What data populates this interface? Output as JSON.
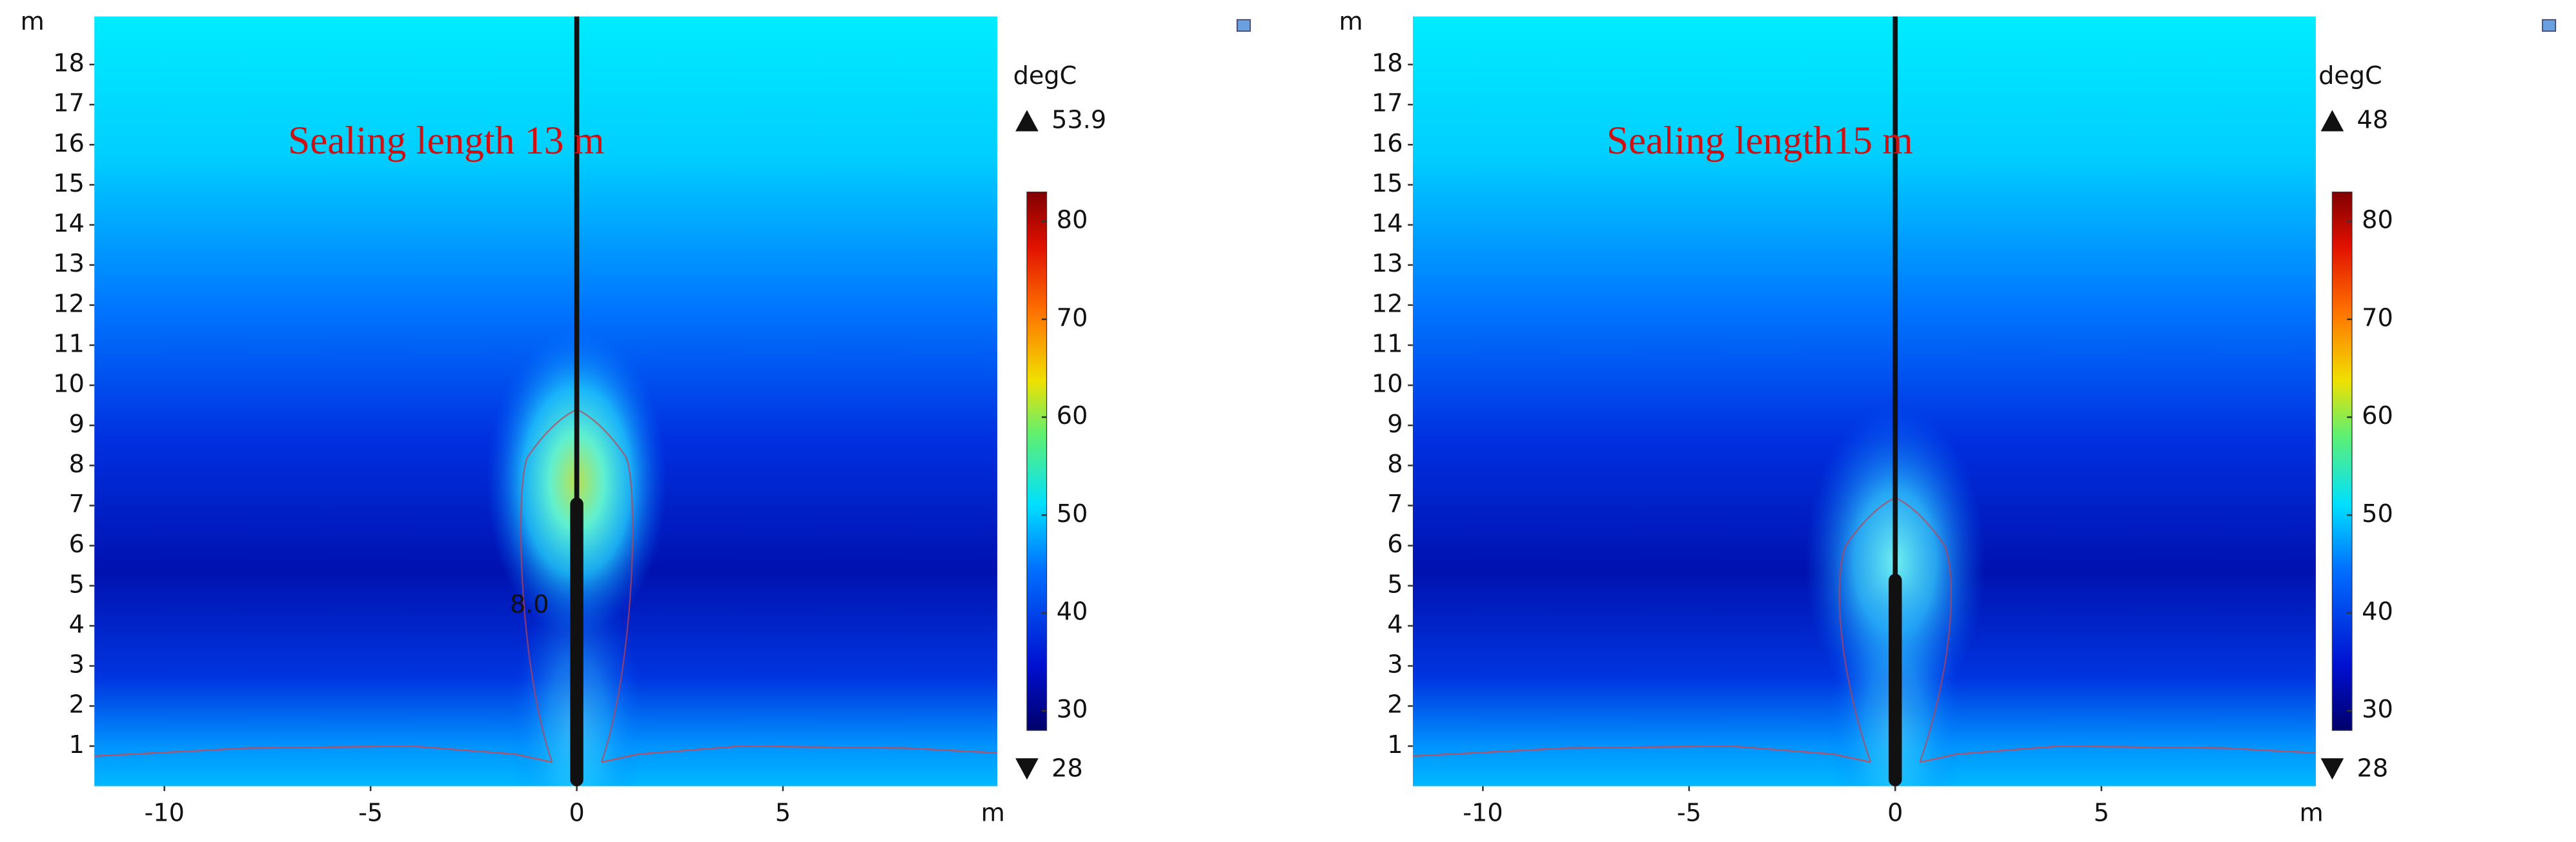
{
  "chart_data": [
    {
      "type": "heatmap",
      "title": "Sealing length 13 m",
      "x_label": "m",
      "y_label": "m",
      "xlim": [
        -11.7,
        10.2
      ],
      "xticks": [
        -10,
        -5,
        0,
        5
      ],
      "ylim": [
        0,
        19.2
      ],
      "yticks": [
        1,
        2,
        3,
        4,
        5,
        6,
        7,
        8,
        9,
        10,
        11,
        12,
        13,
        14,
        15,
        16,
        17,
        18
      ],
      "colorbar_unit": "degC",
      "colorbar_max": 53.9,
      "colorbar_min": 28,
      "clim": [
        28,
        83
      ],
      "cticks": [
        30,
        40,
        50,
        60,
        70,
        80
      ],
      "annotations": [
        "8.0"
      ]
    },
    {
      "type": "heatmap",
      "title": "Sealing length15 m",
      "x_label": "m",
      "y_label": "m",
      "xlim": [
        -11.7,
        10.2
      ],
      "xticks": [
        -10,
        -5,
        0,
        5
      ],
      "ylim": [
        0,
        19.2
      ],
      "yticks": [
        1,
        2,
        3,
        4,
        5,
        6,
        7,
        8,
        9,
        10,
        11,
        12,
        13,
        14,
        15,
        16,
        17,
        18
      ],
      "colorbar_unit": "degC",
      "colorbar_max": 48,
      "colorbar_min": 28,
      "clim": [
        28,
        83
      ],
      "cticks": [
        30,
        40,
        50,
        60,
        70,
        80
      ]
    }
  ]
}
